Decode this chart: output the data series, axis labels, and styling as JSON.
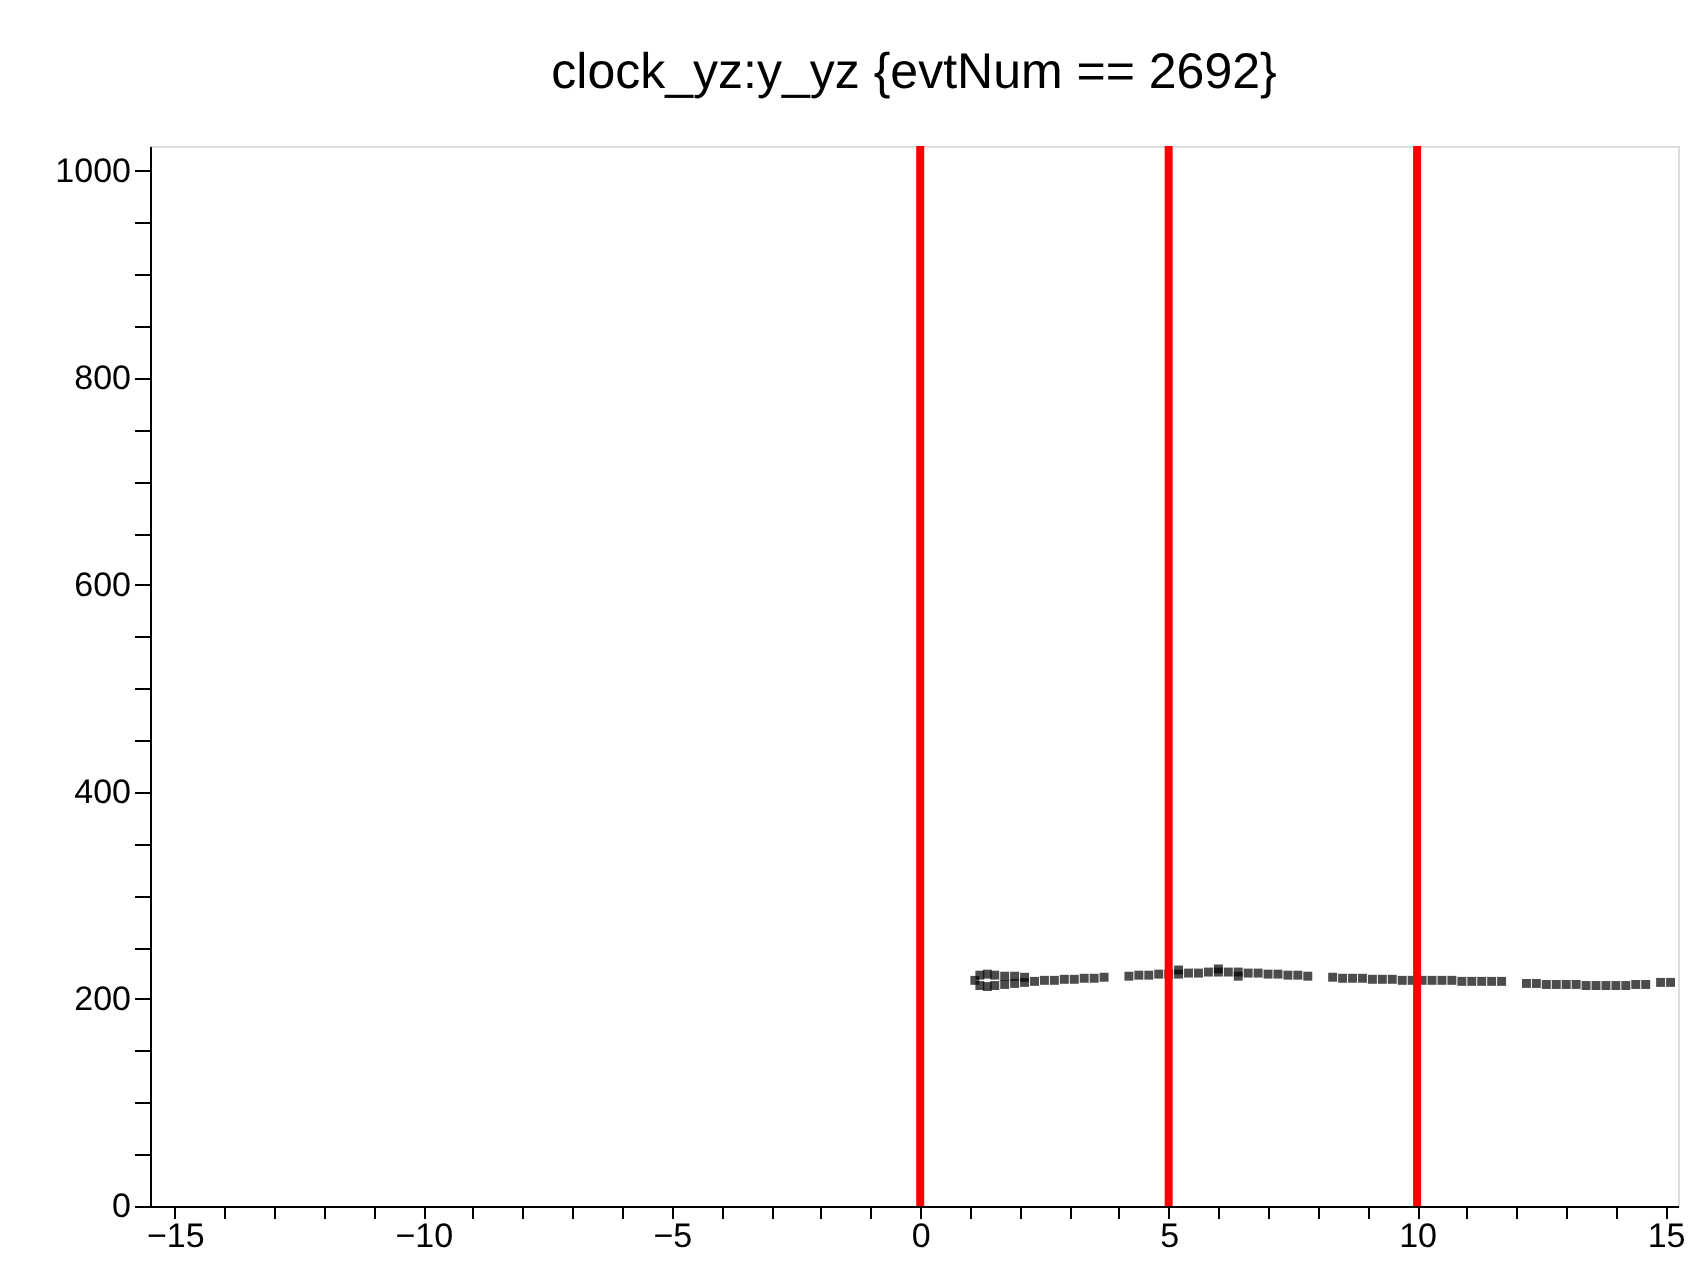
{
  "chart_data": {
    "type": "scatter",
    "title": "clock_yz:y_yz  {evtNum == 2692}",
    "xlim": [
      -15.5,
      15.25
    ],
    "ylim": [
      0,
      1024
    ],
    "xticks": [
      -15,
      {
        "value": -14,
        "label": null
      },
      {
        "value": -13,
        "label": null
      },
      {
        "value": -12,
        "label": null
      },
      {
        "value": -11,
        "label": null
      },
      -10,
      {
        "value": -9,
        "label": null
      },
      {
        "value": -8,
        "label": null
      },
      {
        "value": -7,
        "label": null
      },
      {
        "value": -6,
        "label": null
      },
      -5,
      {
        "value": -4,
        "label": null
      },
      {
        "value": -3,
        "label": null
      },
      {
        "value": -2,
        "label": null
      },
      {
        "value": -1,
        "label": null
      },
      0,
      {
        "value": 1,
        "label": null
      },
      {
        "value": 2,
        "label": null
      },
      {
        "value": 3,
        "label": null
      },
      {
        "value": 4,
        "label": null
      },
      5,
      {
        "value": 6,
        "label": null
      },
      {
        "value": 7,
        "label": null
      },
      {
        "value": 8,
        "label": null
      },
      {
        "value": 9,
        "label": null
      },
      10,
      {
        "value": 11,
        "label": null
      },
      {
        "value": 12,
        "label": null
      },
      {
        "value": 13,
        "label": null
      },
      {
        "value": 14,
        "label": null
      },
      15
    ],
    "yticks": [
      0,
      {
        "value": 50,
        "label": null
      },
      {
        "value": 100,
        "label": null
      },
      {
        "value": 150,
        "label": null
      },
      200,
      {
        "value": 250,
        "label": null
      },
      {
        "value": 300,
        "label": null
      },
      {
        "value": 350,
        "label": null
      },
      400,
      {
        "value": 450,
        "label": null
      },
      {
        "value": 500,
        "label": null
      },
      {
        "value": 550,
        "label": null
      },
      600,
      {
        "value": 650,
        "label": null
      },
      {
        "value": 700,
        "label": null
      },
      {
        "value": 750,
        "label": null
      },
      800,
      {
        "value": 850,
        "label": null
      },
      {
        "value": 900,
        "label": null
      },
      {
        "value": 950,
        "label": null
      },
      1000
    ],
    "grid": false,
    "marker": "square",
    "series": [
      {
        "color": "#000000",
        "x": [
          1.1,
          1.2,
          1.2,
          1.35,
          1.35,
          1.5,
          1.5,
          1.7,
          1.7,
          1.9,
          1.9,
          2.1,
          2.1,
          2.3,
          2.5,
          2.7,
          2.9,
          3.1,
          3.3,
          3.5,
          3.7,
          4.2,
          4.4,
          4.6,
          4.8,
          5.0,
          5.2,
          5.2,
          5.4,
          5.6,
          5.8,
          6.0,
          6.0,
          6.2,
          6.4,
          6.4,
          6.6,
          6.8,
          7.0,
          7.2,
          7.4,
          7.6,
          7.8,
          8.3,
          8.5,
          8.7,
          8.9,
          9.1,
          9.3,
          9.5,
          9.7,
          9.9,
          10.1,
          10.3,
          10.5,
          10.7,
          10.9,
          11.1,
          11.3,
          11.5,
          11.7,
          12.2,
          12.4,
          12.6,
          12.8,
          13.0,
          13.2,
          13.4,
          13.6,
          13.8,
          14.0,
          14.2,
          14.4,
          14.6,
          14.9,
          15.1
        ],
        "values": [
          218,
          213,
          223,
          212,
          224,
          213,
          223,
          214,
          222,
          215,
          222,
          216,
          221,
          217,
          218,
          218,
          219,
          219,
          220,
          220,
          221,
          222,
          223,
          223,
          224,
          224,
          224,
          228,
          225,
          225,
          226,
          226,
          229,
          226,
          226,
          222,
          225,
          225,
          224,
          224,
          223,
          223,
          222,
          221,
          220,
          220,
          220,
          219,
          219,
          219,
          218,
          218,
          218,
          218,
          218,
          218,
          217,
          217,
          217,
          217,
          217,
          215,
          215,
          214,
          214,
          214,
          214,
          213,
          213,
          213,
          213,
          213,
          214,
          214,
          216,
          216
        ]
      }
    ],
    "ref_lines": [
      {
        "axis": "x",
        "value": 0,
        "color": "#ff0000"
      },
      {
        "axis": "x",
        "value": 5,
        "color": "#ff0000"
      },
      {
        "axis": "x",
        "value": 10,
        "color": "#ff0000"
      }
    ]
  }
}
